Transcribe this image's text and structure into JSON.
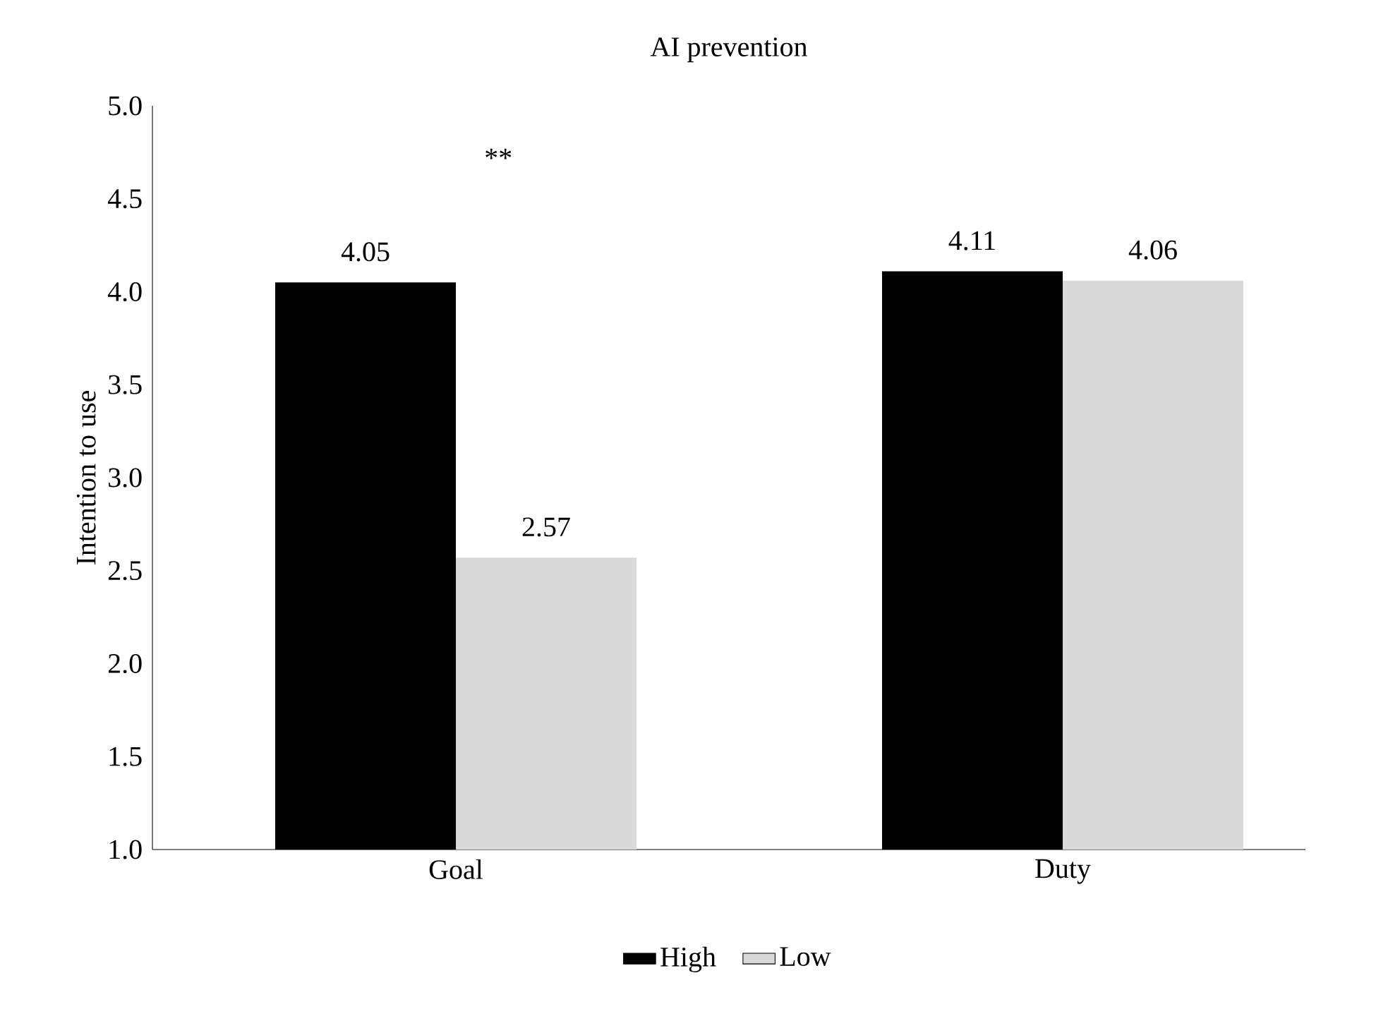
{
  "chart_data": {
    "type": "bar",
    "title": "AI prevention",
    "ylabel": "Intention to use",
    "categories": [
      "Goal",
      "Duty"
    ],
    "series": [
      {
        "name": "High",
        "color": "#000000",
        "values": [
          4.05,
          4.11
        ]
      },
      {
        "name": "Low",
        "color": "#d9d9d9",
        "values": [
          2.57,
          4.06
        ]
      }
    ],
    "ylim": [
      1,
      5
    ],
    "yticks": [
      {
        "value": 1,
        "label": "1.0"
      },
      {
        "value": 1.5,
        "label": "1.5"
      },
      {
        "value": 2,
        "label": "2.0"
      },
      {
        "value": 2.5,
        "label": "2.5"
      },
      {
        "value": 3,
        "label": "3.0"
      },
      {
        "value": 3.5,
        "label": "3.5"
      },
      {
        "value": 4,
        "label": "4.0"
      },
      {
        "value": 4.5,
        "label": "4.5"
      },
      {
        "value": 5,
        "label": "5.0"
      }
    ],
    "data_labels": true,
    "grid": false,
    "legend": "bottom",
    "annotations": [
      "**"
    ]
  }
}
